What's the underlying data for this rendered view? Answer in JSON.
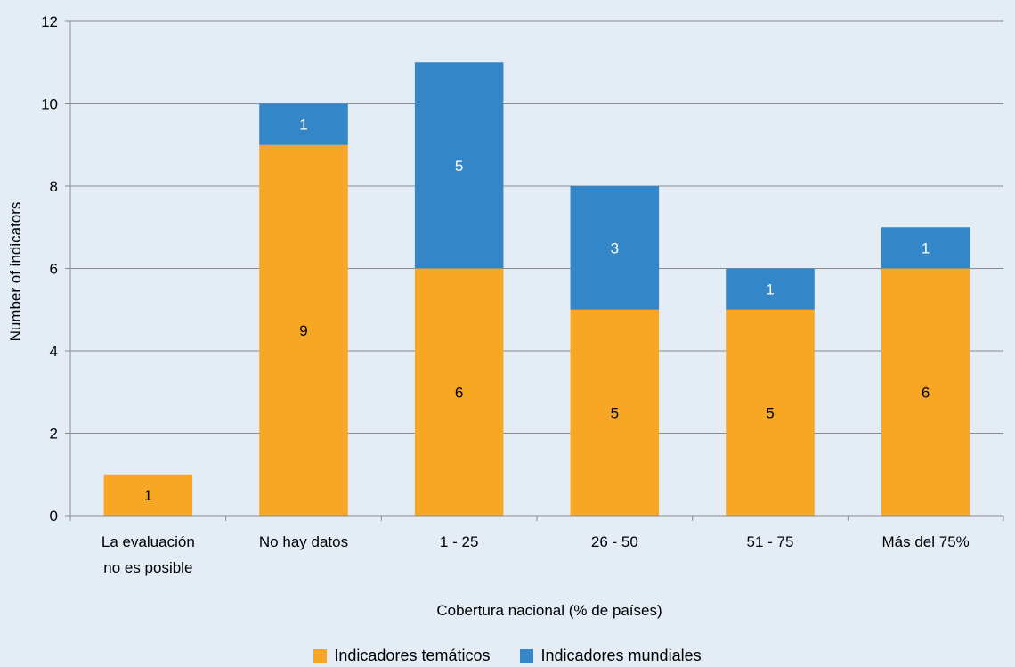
{
  "chart_data": {
    "type": "bar",
    "stacked": true,
    "title": "",
    "categories": [
      [
        "La evaluación",
        "no es posible"
      ],
      [
        "No hay datos"
      ],
      [
        "1 - 25"
      ],
      [
        "26 - 50"
      ],
      [
        "51 - 75"
      ],
      [
        "Más del 75%"
      ]
    ],
    "series": [
      {
        "name": "Indicadores temáticos",
        "color": "#f7a723",
        "label_color": "#000000",
        "values": [
          1,
          9,
          6,
          5,
          5,
          6
        ]
      },
      {
        "name": "Indicadores mundiales",
        "color": "#3386c8",
        "label_color": "#ffffff",
        "values": [
          0,
          1,
          5,
          3,
          1,
          1
        ]
      }
    ],
    "xlabel": "Cobertura nacional (% de países)",
    "ylabel": "Number of indicators",
    "ylim": [
      0,
      12
    ],
    "yticks": [
      0,
      2,
      4,
      6,
      8,
      10,
      12
    ],
    "grid": true,
    "legend_position": "bottom"
  }
}
